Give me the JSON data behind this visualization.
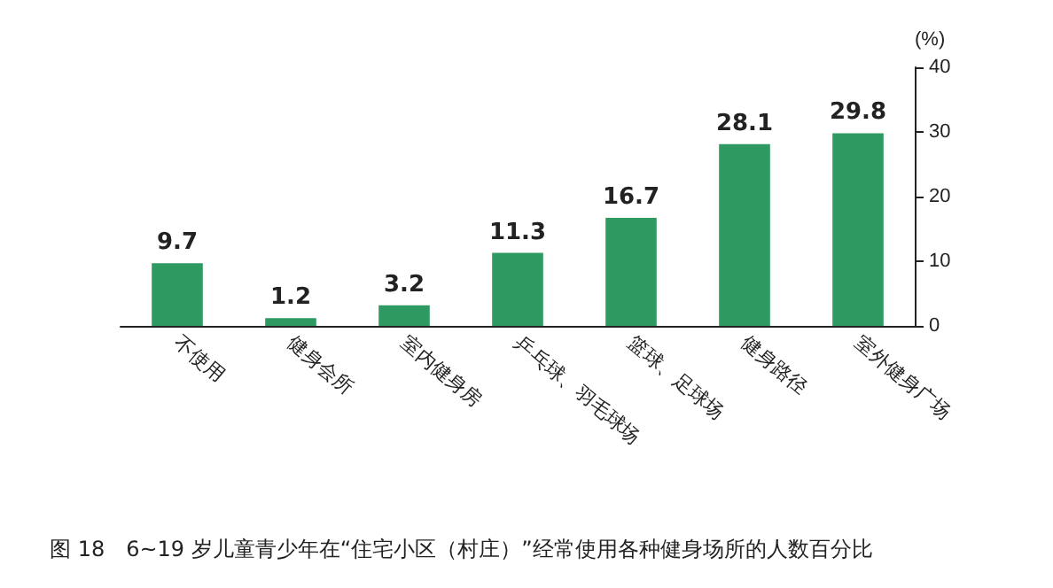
{
  "chart_data": {
    "type": "bar",
    "ylabel": "(%)",
    "categories": [
      "不使用",
      "健身会所",
      "室内健身房",
      "乒乓球、羽毛球场",
      "篮球、足球场",
      "健身路径",
      "室外健身广场"
    ],
    "values": [
      9.7,
      1.2,
      3.2,
      11.3,
      16.7,
      28.1,
      29.8
    ],
    "color": "#2e9a62",
    "ylim": [
      0,
      40
    ],
    "yticks": [
      0,
      10,
      20,
      30,
      40
    ],
    "data_labels": true,
    "annotations": [
      "图 18　6~19 岁儿童青少年在“住宅小区（村庄）”经常使用各种健身场所的人数百分比"
    ]
  }
}
